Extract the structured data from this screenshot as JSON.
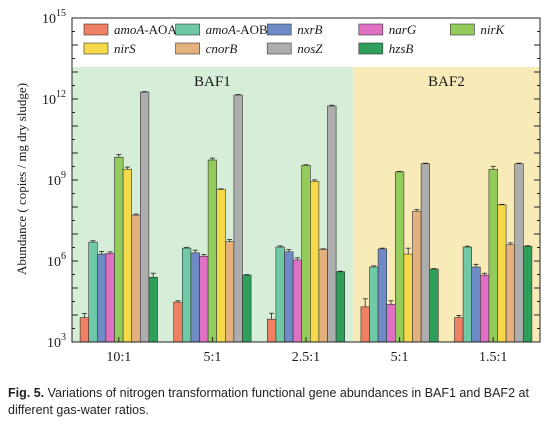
{
  "chart_data": {
    "type": "bar",
    "ylabel": "Abundance ( copies / mg dry sludge)",
    "yscale": "log",
    "ylim": [
      1000,
      1000000000000000
    ],
    "yticks": [
      {
        "value": 1000,
        "mantissa": "10",
        "exponent": "3"
      },
      {
        "value": 1000000,
        "mantissa": "10",
        "exponent": "6"
      },
      {
        "value": 1000000000,
        "mantissa": "10",
        "exponent": "9"
      },
      {
        "value": 1000000000000,
        "mantissa": "10",
        "exponent": "12"
      },
      {
        "value": 1000000000000000,
        "mantissa": "10",
        "exponent": "15"
      }
    ],
    "categories": [
      "10:1",
      "5:1",
      "2.5:1",
      "5:1",
      "1.5:1"
    ],
    "groups": [
      {
        "label": "BAF1",
        "categories": [
          0,
          1,
          2
        ],
        "color": "#d6eed7"
      },
      {
        "label": "BAF2",
        "categories": [
          3,
          4
        ],
        "color": "#f9ebb8"
      }
    ],
    "series": [
      {
        "name": "amoA-AOA",
        "italic": "amoA",
        "suffix": "-AOA",
        "color": "#f08063",
        "values": [
          8000,
          30000,
          7000,
          20000,
          8000
        ],
        "errors": [
          0.15,
          0.05,
          0.22,
          0.3,
          0.08
        ]
      },
      {
        "name": "amoA-AOB",
        "italic": "amoA",
        "suffix": "-AOB",
        "color": "#6fc8a6",
        "values": [
          5000000,
          3000000,
          3300000,
          600000,
          3300000
        ],
        "errors": [
          0.05,
          0.03,
          0.04,
          0.04,
          0.03
        ]
      },
      {
        "name": "nxrB",
        "italic": "nxrB",
        "suffix": "",
        "color": "#6f8bc6",
        "values": [
          1800000,
          2000000,
          2200000,
          2800000,
          600000
        ],
        "errors": [
          0.1,
          0.1,
          0.08,
          0.03,
          0.1
        ]
      },
      {
        "name": "narG",
        "italic": "narG",
        "suffix": "",
        "color": "#e070c3",
        "values": [
          1900000,
          1500000,
          1100000,
          25000,
          300000
        ],
        "errors": [
          0.06,
          0.06,
          0.08,
          0.13,
          0.07
        ]
      },
      {
        "name": "nirK",
        "italic": "nirK",
        "suffix": "",
        "color": "#94cc5c",
        "values": [
          7000000000,
          5500000000,
          3500000000,
          2000000000,
          2500000000
        ],
        "errors": [
          0.1,
          0.07,
          0.02,
          0.02,
          0.11
        ]
      },
      {
        "name": "nirS",
        "italic": "nirS",
        "suffix": "",
        "color": "#f6d84b",
        "values": [
          2500000000,
          450000000,
          900000000,
          1800000,
          120000000
        ],
        "errors": [
          0.08,
          0.02,
          0.05,
          0.22,
          0.02
        ]
      },
      {
        "name": "cnorB",
        "italic": "cnorB",
        "suffix": "",
        "color": "#e3b17e",
        "values": [
          50000000,
          5200000,
          2700000,
          70000000,
          4000000
        ],
        "errors": [
          0.04,
          0.08,
          0.02,
          0.06,
          0.07
        ]
      },
      {
        "name": "nosZ",
        "italic": "nosZ",
        "suffix": "",
        "color": "#adadad",
        "values": [
          1800000000000,
          1400000000000,
          550000000000,
          4000000000,
          4000000000
        ],
        "errors": [
          0.02,
          0.02,
          0.03,
          0.02,
          0.02
        ]
      },
      {
        "name": "hzsB",
        "italic": "hzsB",
        "suffix": "",
        "color": "#2ea05c",
        "values": [
          250000,
          300000,
          400000,
          500000,
          3500000
        ],
        "errors": [
          0.15,
          0.02,
          0.02,
          0.02,
          0.02
        ]
      }
    ],
    "legend": {
      "placement": "top",
      "columns": 5
    }
  },
  "caption": {
    "label": "Fig. 5.",
    "text": " Variations of nitrogen transformation functional gene abundances in BAF1 and BAF2 at different gas-water ratios."
  }
}
